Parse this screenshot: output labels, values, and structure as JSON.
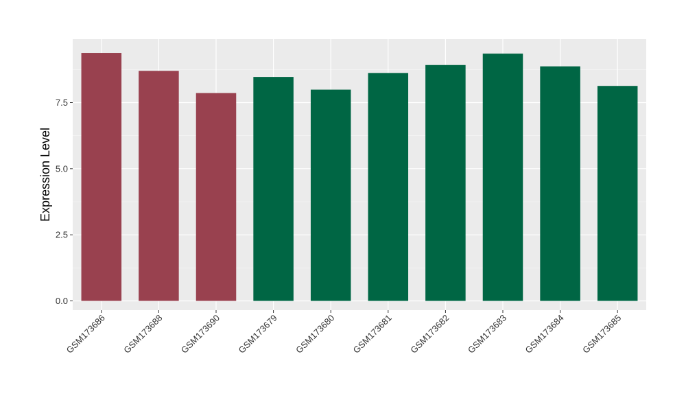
{
  "chart_data": {
    "type": "bar",
    "title": "",
    "xlabel": "",
    "ylabel": "Expression Level",
    "ylim": [
      -0.35,
      9.9
    ],
    "yticks": [
      0.0,
      2.5,
      5.0,
      7.5
    ],
    "ytick_labels": [
      "0.0",
      "2.5",
      "5.0",
      "7.5"
    ],
    "grid": true,
    "legend": "none",
    "categories": [
      "GSM173686",
      "GSM173688",
      "GSM173690",
      "GSM173679",
      "GSM173680",
      "GSM173681",
      "GSM173682",
      "GSM173683",
      "GSM173684",
      "GSM173685"
    ],
    "values": [
      9.38,
      8.7,
      7.86,
      8.47,
      7.99,
      8.62,
      8.92,
      9.35,
      8.87,
      8.13
    ],
    "bar_colors": [
      "#99414f",
      "#99414f",
      "#99414f",
      "#006644",
      "#006644",
      "#006644",
      "#006644",
      "#006644",
      "#006644",
      "#006644"
    ],
    "colors": {
      "panel_background": "#ebebeb",
      "grid_major": "#ffffff",
      "grid_minor": "#f5f5f5",
      "group_a": "#99414f",
      "group_b": "#006644"
    }
  }
}
